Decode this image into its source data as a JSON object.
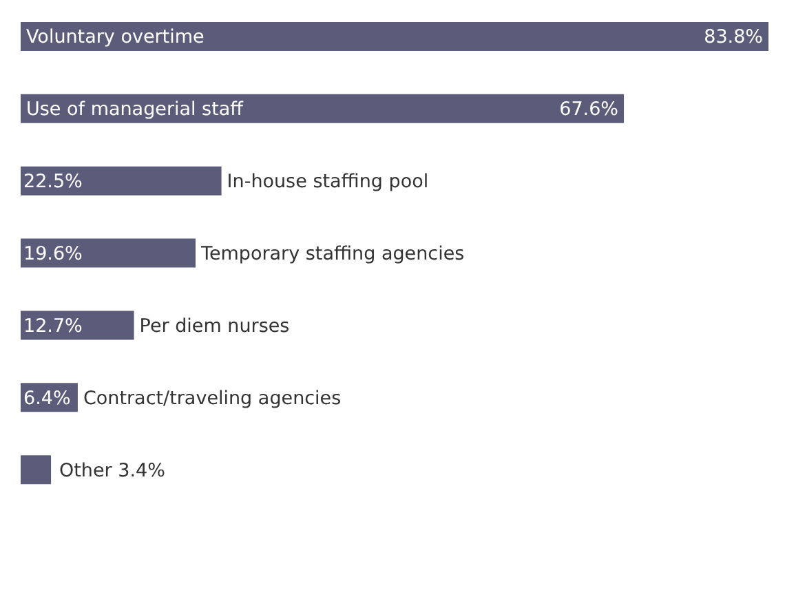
{
  "chart_data": {
    "type": "bar",
    "orientation": "horizontal",
    "categories": [
      "Voluntary overtime",
      "Use of managerial staff",
      "In-house staffing pool",
      "Temporary staffing agencies",
      "Per diem nurses",
      "Contract/traveling agencies",
      "Other"
    ],
    "values": [
      83.8,
      67.6,
      22.5,
      19.6,
      12.7,
      6.4,
      3.4
    ],
    "value_labels": [
      "83.8%",
      "67.6%",
      "22.5%",
      "19.6%",
      "12.7%",
      "6.4%",
      "3.4%"
    ],
    "color": "#5b5b7a",
    "grid": false,
    "legend": false
  }
}
